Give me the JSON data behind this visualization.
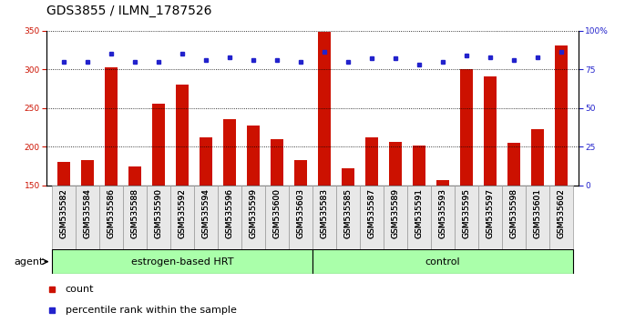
{
  "title": "GDS3855 / ILMN_1787526",
  "categories": [
    "GSM535582",
    "GSM535584",
    "GSM535586",
    "GSM535588",
    "GSM535590",
    "GSM535592",
    "GSM535594",
    "GSM535596",
    "GSM535599",
    "GSM535600",
    "GSM535603",
    "GSM535583",
    "GSM535585",
    "GSM535587",
    "GSM535589",
    "GSM535591",
    "GSM535593",
    "GSM535595",
    "GSM535597",
    "GSM535598",
    "GSM535601",
    "GSM535602"
  ],
  "bar_values": [
    180,
    182,
    302,
    174,
    255,
    280,
    212,
    235,
    227,
    210,
    182,
    348,
    172,
    212,
    206,
    201,
    157,
    300,
    291,
    205,
    222,
    331
  ],
  "percentile_values_pct": [
    80,
    80,
    85,
    80,
    80,
    85,
    81,
    83,
    81,
    81,
    80,
    86,
    80,
    82,
    82,
    78,
    80,
    84,
    83,
    81,
    83,
    86
  ],
  "group1_label": "estrogen-based HRT",
  "group2_label": "control",
  "group1_count": 11,
  "group2_count": 11,
  "bar_color": "#cc1100",
  "percentile_color": "#2222cc",
  "group1_bg": "#aaffaa",
  "group2_bg": "#aaffaa",
  "ylim_left": [
    150,
    350
  ],
  "ylim_right": [
    0,
    100
  ],
  "yticks_left": [
    150,
    200,
    250,
    300,
    350
  ],
  "yticks_right": [
    0,
    25,
    50,
    75,
    100
  ],
  "ylabel_right_ticks": [
    "0",
    "25",
    "50",
    "75",
    "100%"
  ],
  "legend_count_label": "count",
  "legend_pct_label": "percentile rank within the sample",
  "agent_label": "agent",
  "title_fontsize": 10,
  "tick_fontsize": 6.5,
  "label_fontsize": 8
}
